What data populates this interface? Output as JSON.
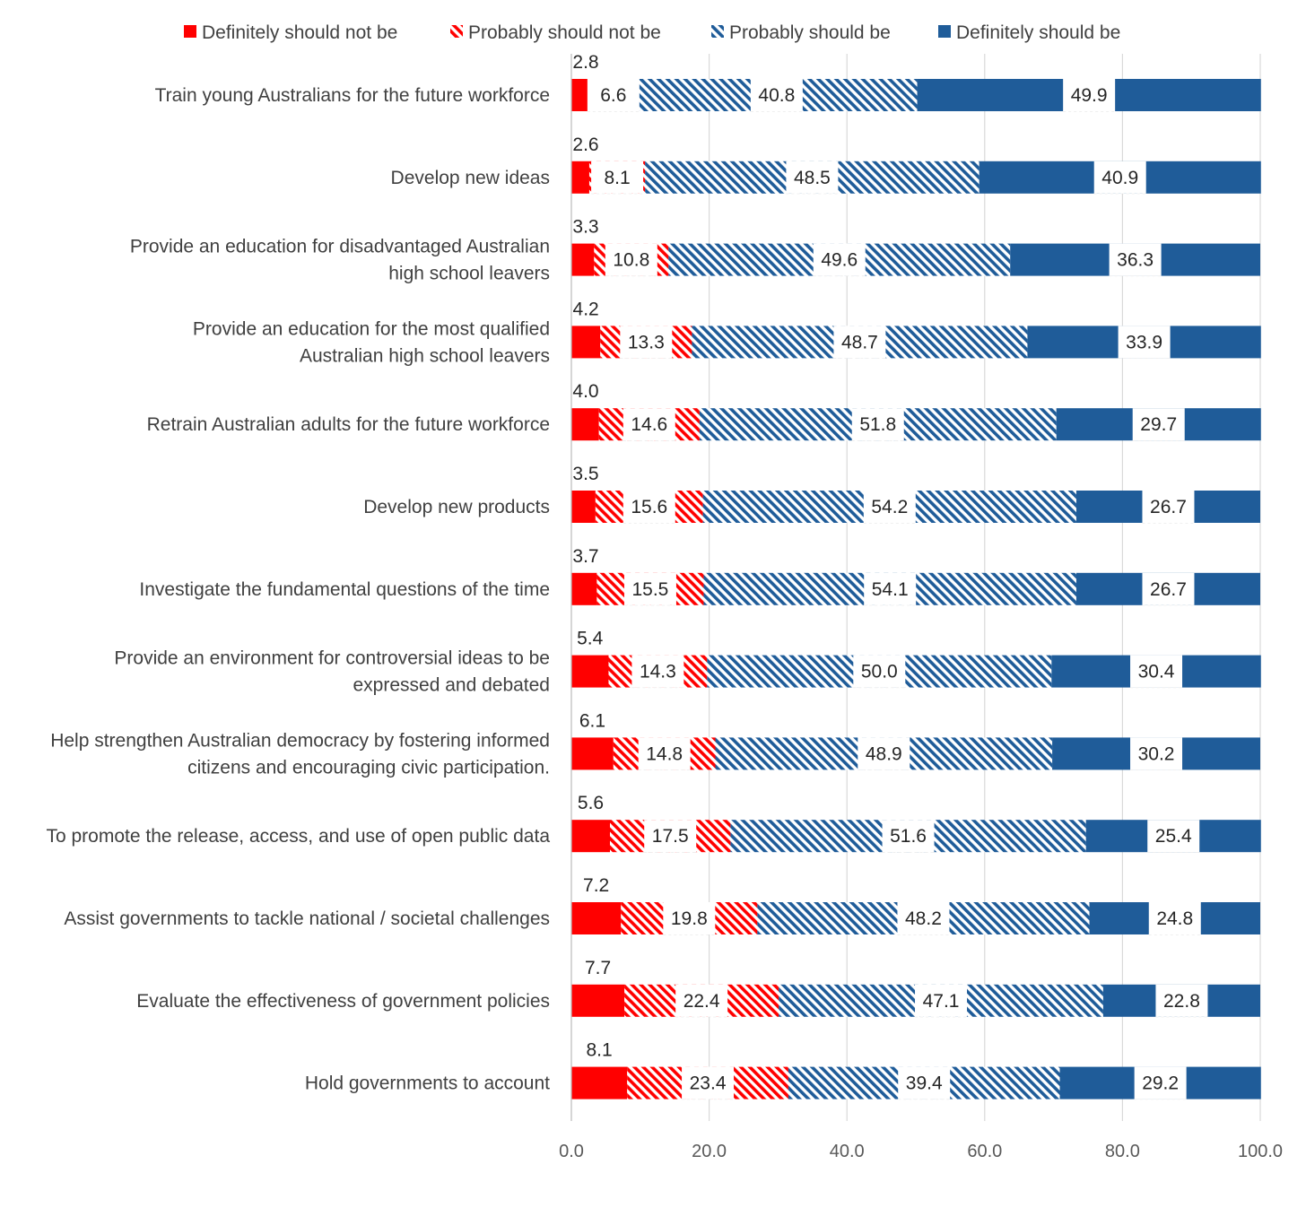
{
  "chart_data": {
    "type": "bar",
    "orientation": "horizontal",
    "stacked": "percent",
    "title": "",
    "xlabel": "",
    "ylabel": "",
    "xlim": [
      0,
      100
    ],
    "x_ticks": [
      "0.0",
      "20.0",
      "40.0",
      "60.0",
      "80.0",
      "100.0"
    ],
    "grid": true,
    "legend_position": "top",
    "categories": [
      "Train young Australians for the future workforce",
      "Develop new ideas",
      "Provide an education for disadvantaged Australian high school leavers",
      "Provide an education for the most qualified Australian high school leavers",
      "Retrain Australian adults for the future workforce",
      "Develop new products",
      "Investigate the fundamental questions of the time",
      "Provide an environment for controversial ideas to be expressed and debated",
      "Help strengthen Australian democracy by fostering informed citizens and encouraging civic participation.",
      "To promote the release, access, and use of open public data",
      "Assist governments to tackle national / societal challenges",
      "Evaluate the effectiveness of government policies",
      "Hold governments to account"
    ],
    "category_lines": [
      [
        "Train young Australians for the future workforce"
      ],
      [
        "Develop new ideas"
      ],
      [
        "Provide an education for disadvantaged Australian",
        "high school leavers"
      ],
      [
        "Provide an education for the most qualified",
        "Australian high school leavers"
      ],
      [
        "Retrain Australian adults for the future workforce"
      ],
      [
        "Develop new products"
      ],
      [
        "Investigate the fundamental questions of the time"
      ],
      [
        "Provide an environment for controversial ideas to be",
        "expressed and debated"
      ],
      [
        "Help strengthen Australian democracy by fostering informed",
        "citizens and encouraging civic participation."
      ],
      [
        "To promote the release, access, and use of open public data"
      ],
      [
        "Assist governments to tackle national / societal challenges"
      ],
      [
        "Evaluate the effectiveness of government policies"
      ],
      [
        "Hold governments to account"
      ]
    ],
    "series": [
      {
        "name": "Definitely should not be",
        "color": "#ff0000",
        "pattern": "solid",
        "values": [
          2.8,
          2.6,
          3.3,
          4.2,
          4.0,
          3.5,
          3.7,
          5.4,
          6.1,
          5.6,
          7.2,
          7.7,
          8.1
        ]
      },
      {
        "name": "Probably should not be",
        "color": "#ff0000",
        "pattern": "hatch",
        "values": [
          6.6,
          8.1,
          10.8,
          13.3,
          14.6,
          15.6,
          15.5,
          14.3,
          14.8,
          17.5,
          19.8,
          22.4,
          23.4
        ]
      },
      {
        "name": "Probably should be",
        "color": "#1f5c99",
        "pattern": "hatch",
        "values": [
          40.8,
          48.5,
          49.6,
          48.7,
          51.8,
          54.2,
          54.1,
          50.0,
          48.9,
          51.6,
          48.2,
          47.1,
          39.4
        ]
      },
      {
        "name": "Definitely should be",
        "color": "#1f5c99",
        "pattern": "solid",
        "values": [
          49.9,
          40.9,
          36.3,
          33.9,
          29.7,
          26.7,
          26.7,
          30.4,
          30.2,
          25.4,
          24.8,
          22.8,
          29.2
        ]
      }
    ]
  }
}
